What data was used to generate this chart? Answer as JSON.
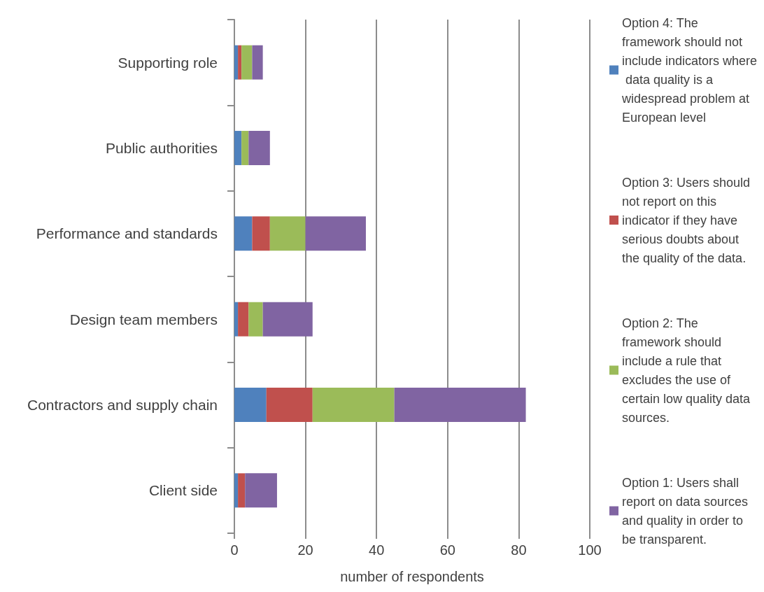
{
  "chart_data": {
    "type": "bar",
    "orientation": "horizontal",
    "stacked": true,
    "categories": [
      "Supporting role",
      "Public authorities",
      "Performance and standards",
      "Design team members",
      "Contractors and supply chain",
      "Client side"
    ],
    "series": [
      {
        "name": "Option 4: The framework should not include indicators where data quality is a widespread problem at European level",
        "color": "#4f81bd",
        "values": [
          1,
          2,
          5,
          1,
          9,
          1
        ]
      },
      {
        "name": "Option 3: Users should not report on this indicator if they have serious doubts about the quality of the data.",
        "color": "#c0504d",
        "values": [
          1,
          0,
          5,
          3,
          13,
          2
        ]
      },
      {
        "name": "Option 2: The framework should include a rule that excludes the use of certain low quality data sources.",
        "color": "#9bbb59",
        "values": [
          3,
          2,
          10,
          4,
          23,
          0
        ]
      },
      {
        "name": "Option 1: Users shall report on data sources and quality in order to be transparent.",
        "color": "#8064a2",
        "values": [
          3,
          6,
          17,
          14,
          37,
          9
        ]
      }
    ],
    "xlabel": "number of respondents",
    "xlim": [
      0,
      100
    ],
    "xticks": [
      0,
      20,
      40,
      60,
      80,
      100
    ],
    "grid": "x",
    "legend": "right"
  }
}
